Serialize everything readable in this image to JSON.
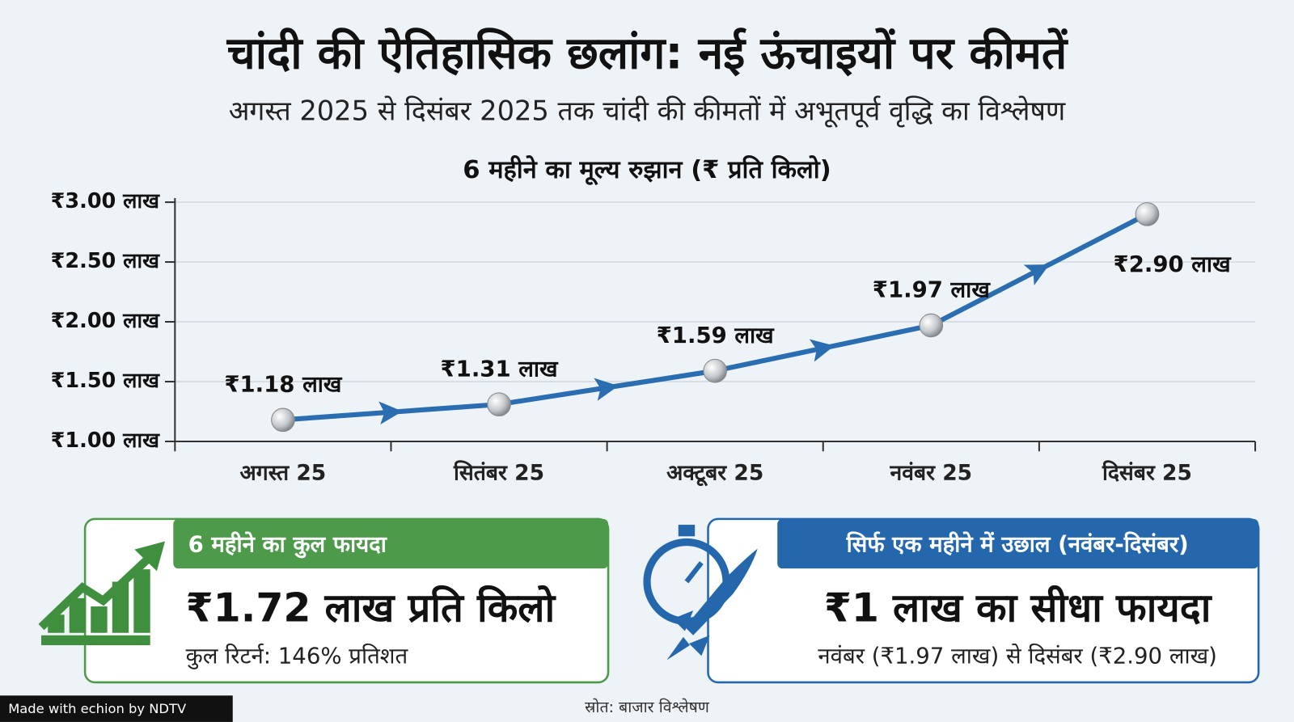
{
  "title": "चांदी की ऐतिहासिक छलांग: नई ऊंचाइयों पर कीमतें",
  "subtitle": "अगस्त 2025 से दिसंबर 2025 तक चांदी की कीमतों में अभूतपूर्व वृद्धि का विश्लेषण",
  "chart_data": {
    "type": "line",
    "title": "6 महीने का मूल्य रुझान (₹ प्रति किलो)",
    "categories": [
      "अगस्त 25",
      "सितंबर 25",
      "अक्टूबर 25",
      "नवंबर 25",
      "दिसंबर 25"
    ],
    "values": [
      1.18,
      1.31,
      1.59,
      1.97,
      2.9
    ],
    "value_labels": [
      "₹1.18 लाख",
      "₹1.31 लाख",
      "₹1.59 लाख",
      "₹1.97 लाख",
      "₹2.90 लाख"
    ],
    "color": "#2a6db0",
    "ylim": [
      1.0,
      3.0
    ],
    "yticks": [
      {
        "value": 1.0,
        "label": "₹1.00 लाख"
      },
      {
        "value": 1.5,
        "label": "₹1.50 लाख"
      },
      {
        "value": 2.0,
        "label": "₹2.00 लाख"
      },
      {
        "value": 2.5,
        "label": "₹2.50 लाख"
      },
      {
        "value": 3.0,
        "label": "₹3.00 लाख"
      }
    ],
    "grid": true
  },
  "cards": [
    {
      "header": "6 महीने का कुल फायदा",
      "value": "₹1.72 लाख प्रति किलो",
      "detail": "कुल रिटर्न: 146% प्रतिशत"
    },
    {
      "header": "सिर्फ एक महीने में उछाल (नवंबर-दिसंबर)",
      "value": "₹1 लाख का सीधा फायदा",
      "detail": "नवंबर (₹1.97 लाख) से दिसंबर (₹2.90 लाख)"
    }
  ],
  "source": "स्रोत: बाजार विश्लेषण",
  "watermark": "Made with echion by NDTV"
}
